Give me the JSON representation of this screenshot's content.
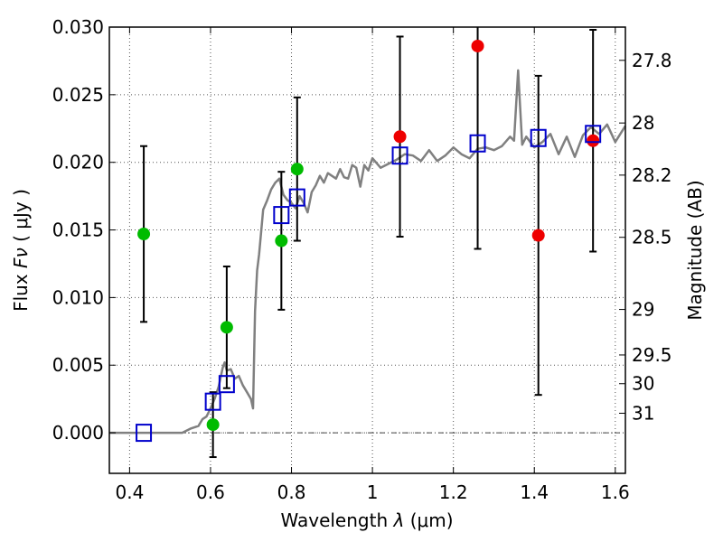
{
  "chart_data": {
    "type": "scatter",
    "title": "",
    "xlabel": "Wavelength",
    "xlabel_symbol": "λ",
    "xlabel_unit": "(μm)",
    "ylabel": "Flux",
    "ylabel_symbol": "Fν",
    "ylabel_unit": "( μJy )",
    "y2label": "Magnitude (AB)",
    "xlim": [
      0.35,
      1.625
    ],
    "ylim": [
      -0.003,
      0.03
    ],
    "grid": true,
    "zero_line": true,
    "x_ticks": [
      {
        "value": 0.4,
        "label": "0.4"
      },
      {
        "value": 0.6,
        "label": "0.6"
      },
      {
        "value": 0.8,
        "label": "0.8"
      },
      {
        "value": 1.0,
        "label": "1"
      },
      {
        "value": 1.2,
        "label": "1.2"
      },
      {
        "value": 1.4,
        "label": "1.4"
      },
      {
        "value": 1.6,
        "label": "1.6"
      }
    ],
    "y_ticks": [
      {
        "value": 0.0,
        "label": "0.000"
      },
      {
        "value": 0.005,
        "label": "0.005"
      },
      {
        "value": 0.01,
        "label": "0.010"
      },
      {
        "value": 0.015,
        "label": "0.015"
      },
      {
        "value": 0.02,
        "label": "0.020"
      },
      {
        "value": 0.025,
        "label": "0.025"
      },
      {
        "value": 0.03,
        "label": "0.030"
      }
    ],
    "y2_ticks": [
      {
        "label": "27.8",
        "mag": 27.8
      },
      {
        "label": "28",
        "mag": 28.0
      },
      {
        "label": "28.2",
        "mag": 28.2
      },
      {
        "label": "28.5",
        "mag": 28.5
      },
      {
        "label": "29",
        "mag": 29.0
      },
      {
        "label": "29.5",
        "mag": 29.5
      },
      {
        "label": "30",
        "mag": 30.0
      },
      {
        "label": "31",
        "mag": 31.0
      }
    ],
    "colors": {
      "spectrum": "#808080",
      "green": "#00bb00",
      "red": "#ee0000",
      "model": "#0000cc",
      "errorbar": "#000000",
      "grid": "#555555"
    },
    "series": [
      {
        "marker": "green-circle",
        "points": [
          {
            "x": 0.435,
            "y": 0.0147,
            "err": 0.0065
          },
          {
            "x": 0.606,
            "y": 0.0006,
            "err": 0.0024
          },
          {
            "x": 0.64,
            "y": 0.0078,
            "err": 0.0045
          },
          {
            "x": 0.775,
            "y": 0.0142,
            "err": 0.0051
          },
          {
            "x": 0.814,
            "y": 0.0195,
            "err": 0.0053
          }
        ]
      },
      {
        "marker": "red-circle",
        "points": [
          {
            "x": 1.068,
            "y": 0.0219,
            "err": 0.0074
          },
          {
            "x": 1.26,
            "y": 0.0286,
            "err": 0.015
          },
          {
            "x": 1.41,
            "y": 0.0146,
            "err": 0.0118
          },
          {
            "x": 1.545,
            "y": 0.0216,
            "err": 0.0082
          }
        ]
      },
      {
        "marker": "blue-open-square",
        "points": [
          {
            "x": 0.435,
            "y": 0.0
          },
          {
            "x": 0.606,
            "y": 0.0023
          },
          {
            "x": 0.64,
            "y": 0.0036
          },
          {
            "x": 0.775,
            "y": 0.0161
          },
          {
            "x": 0.814,
            "y": 0.0174
          },
          {
            "x": 1.068,
            "y": 0.0205
          },
          {
            "x": 1.26,
            "y": 0.0214
          },
          {
            "x": 1.41,
            "y": 0.0218
          },
          {
            "x": 1.545,
            "y": 0.0221
          }
        ]
      },
      {
        "marker": "gray-line",
        "x": [
          0.35,
          0.4,
          0.45,
          0.5,
          0.53,
          0.55,
          0.57,
          0.58,
          0.59,
          0.6,
          0.61,
          0.62,
          0.63,
          0.635,
          0.64,
          0.65,
          0.66,
          0.67,
          0.68,
          0.69,
          0.7,
          0.705,
          0.71,
          0.715,
          0.72,
          0.73,
          0.74,
          0.75,
          0.76,
          0.77,
          0.78,
          0.79,
          0.8,
          0.81,
          0.82,
          0.83,
          0.84,
          0.85,
          0.86,
          0.87,
          0.88,
          0.89,
          0.9,
          0.91,
          0.92,
          0.93,
          0.94,
          0.95,
          0.96,
          0.97,
          0.98,
          0.99,
          1.0,
          1.02,
          1.04,
          1.06,
          1.08,
          1.1,
          1.12,
          1.14,
          1.16,
          1.18,
          1.2,
          1.22,
          1.24,
          1.26,
          1.28,
          1.3,
          1.32,
          1.34,
          1.35,
          1.36,
          1.365,
          1.37,
          1.38,
          1.4,
          1.42,
          1.44,
          1.46,
          1.48,
          1.5,
          1.52,
          1.54,
          1.56,
          1.58,
          1.6,
          1.625
        ],
        "y": [
          0,
          0,
          0,
          0,
          0,
          0.0003,
          0.0005,
          0.001,
          0.0012,
          0.0018,
          0.0025,
          0.0034,
          0.0048,
          0.0052,
          0.0046,
          0.0047,
          0.004,
          0.0042,
          0.0035,
          0.003,
          0.0025,
          0.0018,
          0.009,
          0.012,
          0.0132,
          0.0165,
          0.0172,
          0.018,
          0.0185,
          0.0188,
          0.0176,
          0.0172,
          0.017,
          0.0166,
          0.0175,
          0.017,
          0.0163,
          0.0178,
          0.0183,
          0.019,
          0.0185,
          0.0192,
          0.019,
          0.0188,
          0.0195,
          0.0189,
          0.0188,
          0.0198,
          0.0196,
          0.0182,
          0.0198,
          0.0194,
          0.0203,
          0.0196,
          0.0199,
          0.0202,
          0.0206,
          0.0205,
          0.0201,
          0.0209,
          0.0201,
          0.0205,
          0.0211,
          0.0206,
          0.0203,
          0.021,
          0.0211,
          0.0209,
          0.0212,
          0.0219,
          0.0216,
          0.0268,
          0.024,
          0.0213,
          0.0219,
          0.0211,
          0.0215,
          0.0221,
          0.0206,
          0.0219,
          0.0204,
          0.022,
          0.0226,
          0.0221,
          0.0228,
          0.0215,
          0.0227
        ]
      }
    ]
  }
}
